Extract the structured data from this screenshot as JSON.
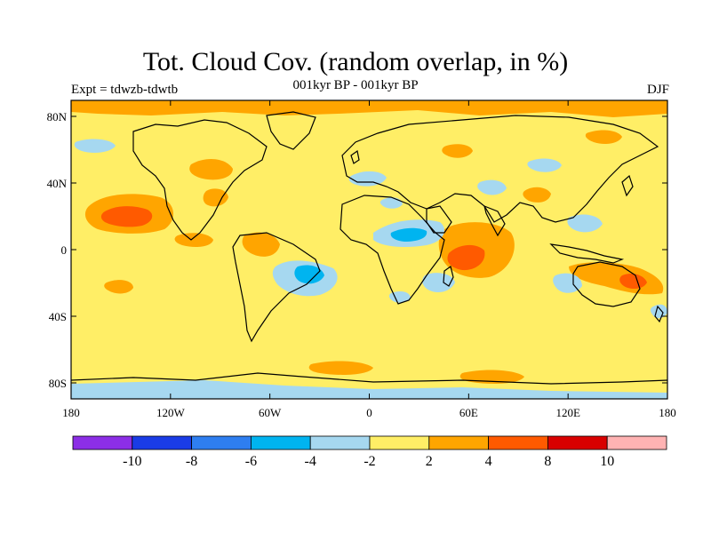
{
  "title": "Tot. Cloud Cov. (random overlap, in %)",
  "subtitle": "001kyr BP - 001kyr BP",
  "left_label": "Expt = tdwzb-tdwtb",
  "right_label": "DJF",
  "map": {
    "projection": "cylindrical equidistant",
    "background_fill": "#ffee66",
    "lat_ticks": [
      "80N",
      "40N",
      "0",
      "40S",
      "80S"
    ],
    "lon_ticks": [
      "180",
      "120W",
      "60W",
      "0",
      "60E",
      "120E",
      "180"
    ]
  },
  "colorbar": {
    "colors": [
      "#8c2ee6",
      "#1a3ce6",
      "#2e7ef0",
      "#00b4f0",
      "#a6d8f0",
      "#ffee66",
      "#ffa500",
      "#ff5a00",
      "#d90000",
      "#ffb3b3"
    ],
    "labels": [
      "-10",
      "-8",
      "-6",
      "-4",
      "-2",
      "2",
      "4",
      "8",
      "10"
    ]
  },
  "anomalies": [
    {
      "region": "N Pacific",
      "color": "#ffa500",
      "lon": -155,
      "lat": 15
    },
    {
      "region": "N Pacific core",
      "color": "#ff5a00",
      "lon": -152,
      "lat": 17
    },
    {
      "region": "Africa/Indian Ocean",
      "color": "#ff5a00",
      "lon": 55,
      "lat": -3
    },
    {
      "region": "Arabia",
      "color": "#a6d8f0",
      "lon": 40,
      "lat": 10
    },
    {
      "region": "S Atlantic/Brazil",
      "color": "#00b4f0",
      "lon": -38,
      "lat": -15
    },
    {
      "region": "Antarctic",
      "color": "#a6d8f0",
      "lon": -90,
      "lat": -85
    },
    {
      "region": "Arctic",
      "color": "#ffa500",
      "lon": -60,
      "lat": 85
    }
  ]
}
